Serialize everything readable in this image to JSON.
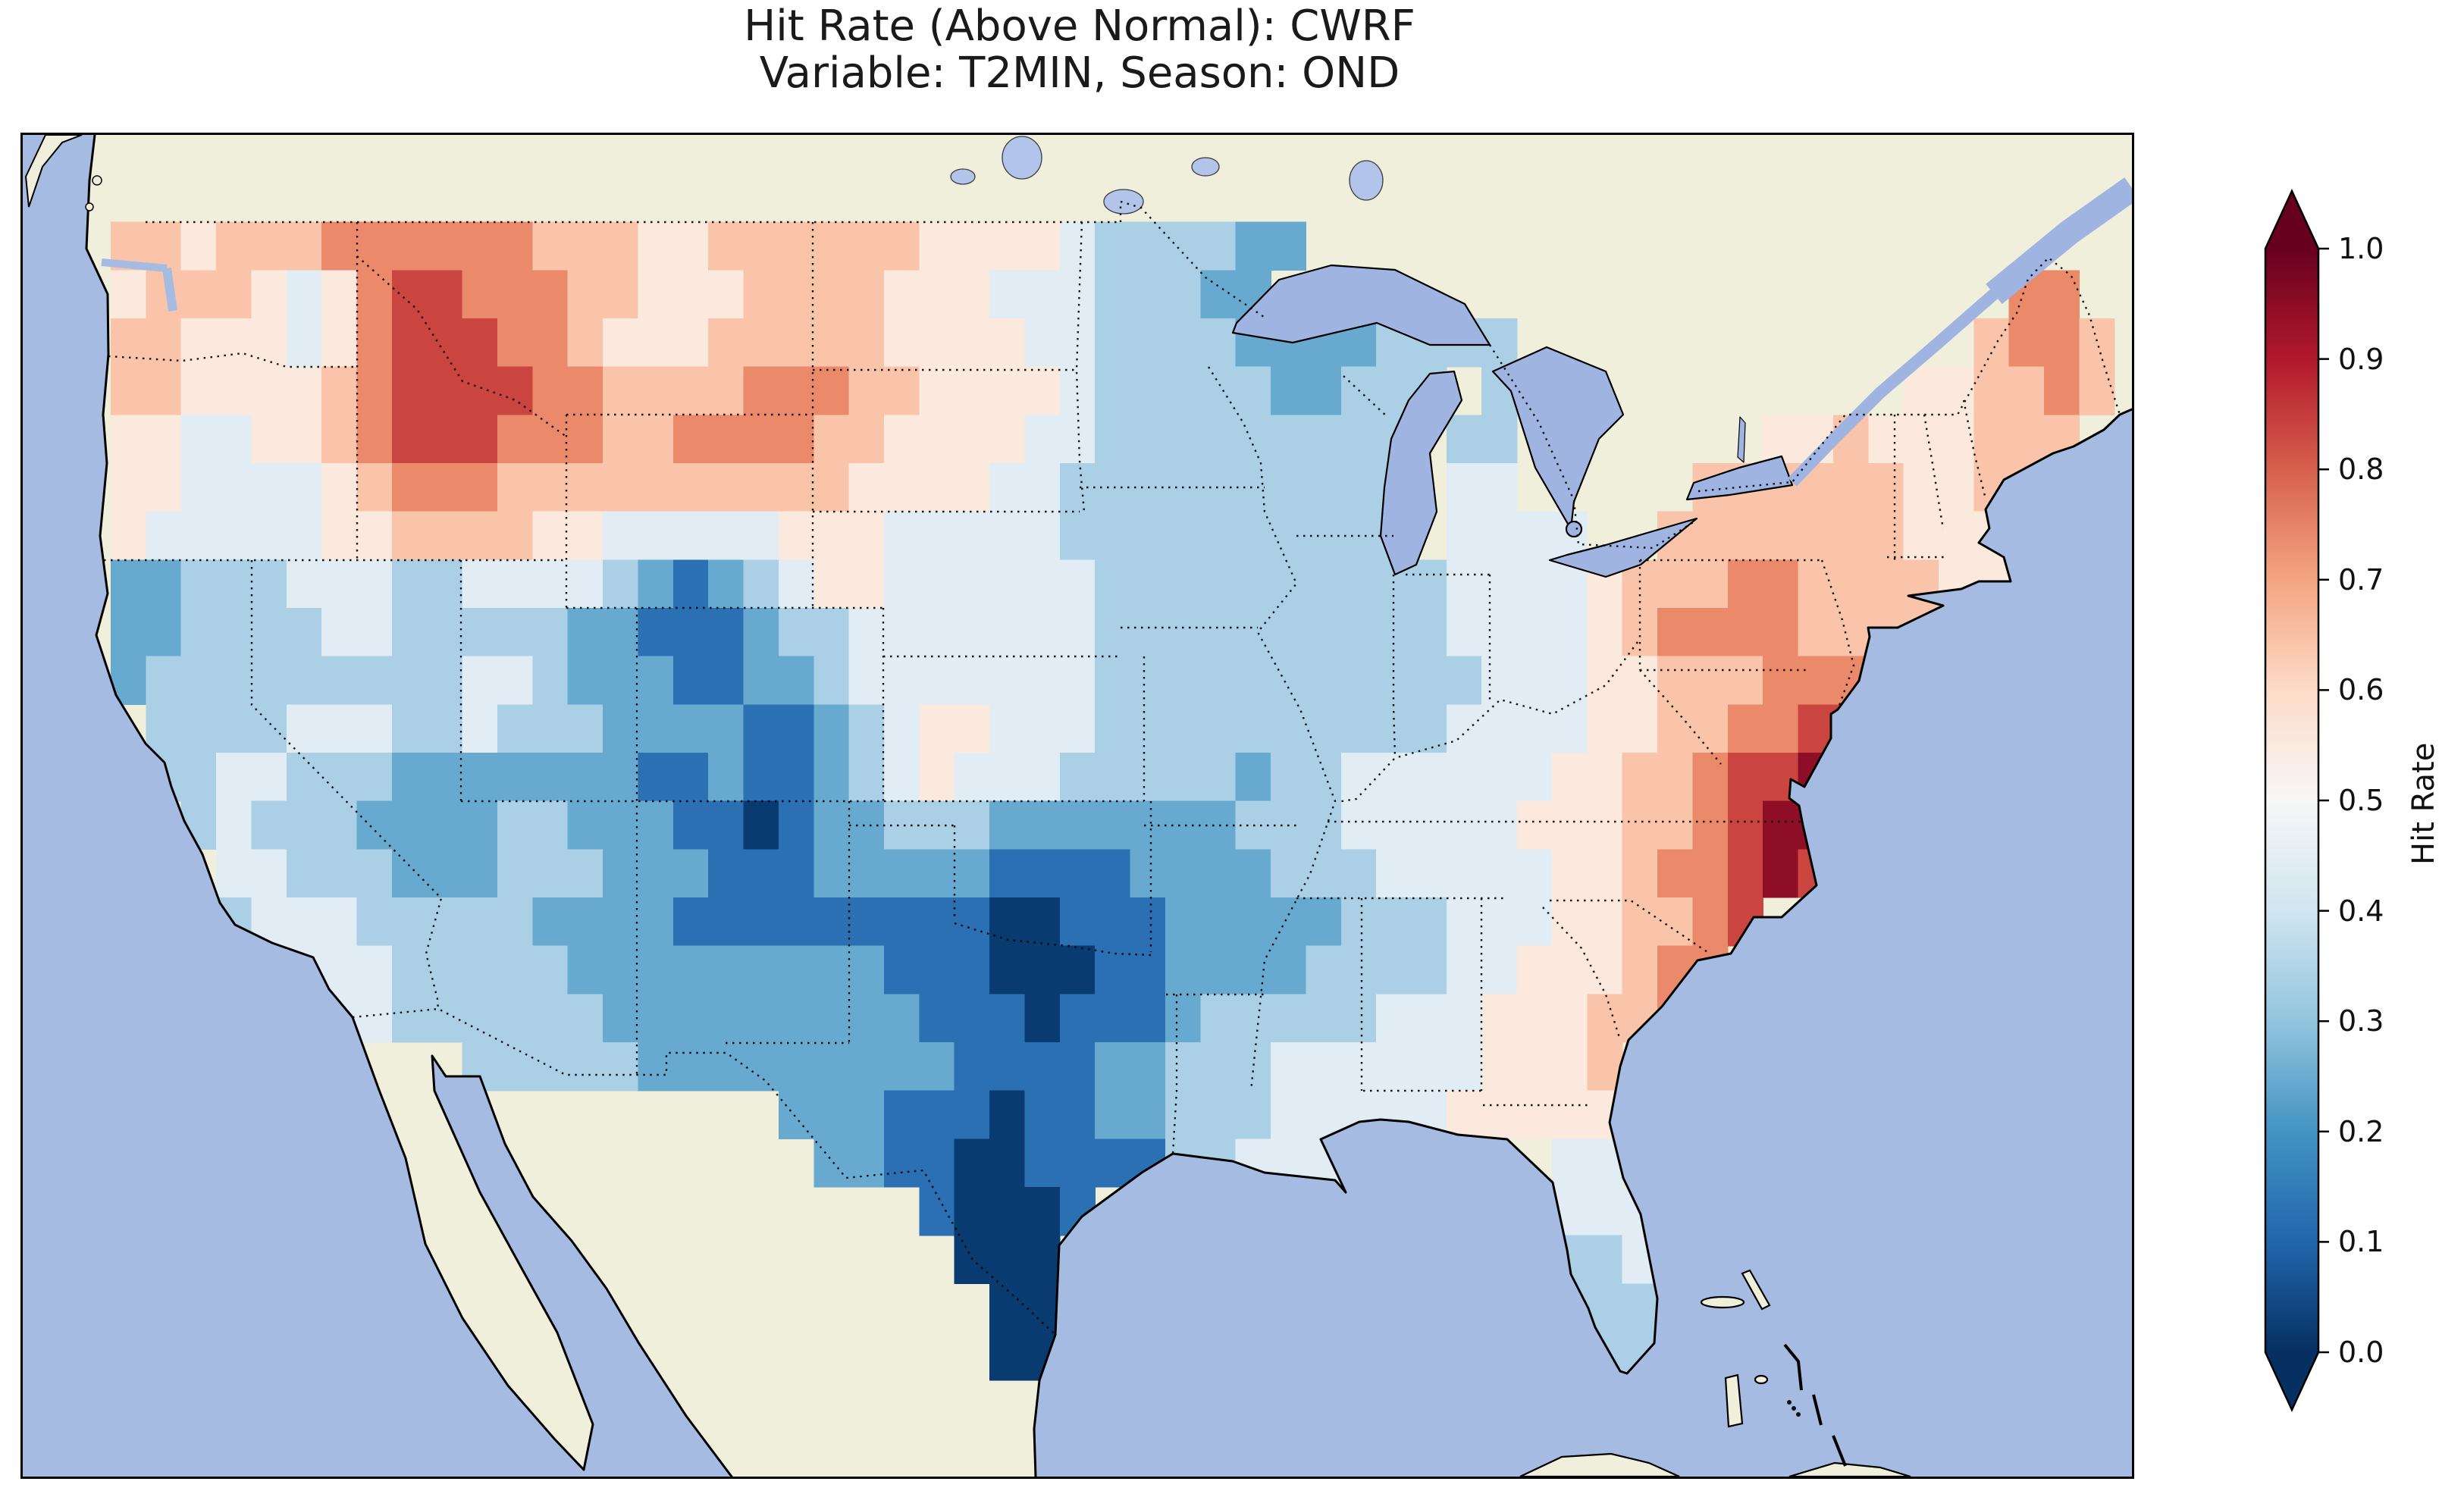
{
  "title": {
    "line1": "Hit Rate (Above Normal): CWRF",
    "line2": "Variable: T2MIN, Season: OND"
  },
  "colorbar": {
    "label": "Hit Rate",
    "ticks": [
      "0.0",
      "0.1",
      "0.2",
      "0.3",
      "0.4",
      "0.5",
      "0.6",
      "0.7",
      "0.8",
      "0.9",
      "1.0"
    ],
    "cmap_stops": [
      "#053061",
      "#2166ac",
      "#4393c3",
      "#92c5de",
      "#d1e5f0",
      "#f7f7f7",
      "#fddbc7",
      "#f4a582",
      "#d6604d",
      "#b2182b",
      "#67001f"
    ],
    "extend": "both"
  },
  "map_colors": {
    "ocean": "#a6bbe2",
    "land": "#f0efdc",
    "lakes": "#9fb4e0",
    "canada_lakes": "#b3c4ea",
    "coastline": "#000000"
  },
  "chart_data": {
    "type": "heatmap",
    "title": "Hit Rate (Above Normal): CWRF",
    "subtitle": "Variable: T2MIN, Season: OND",
    "metric": "Hit Rate (Above Normal)",
    "model": "CWRF",
    "variable": "T2MIN",
    "season": "OND",
    "value_label": "Hit Rate",
    "value_range": [
      0.0,
      1.0
    ],
    "levels": [
      0.0,
      0.1,
      0.2,
      0.3,
      0.4,
      0.5,
      0.6,
      0.7,
      0.8,
      0.9,
      1.0
    ],
    "bin_colors": [
      "#0a3b70",
      "#2a70b2",
      "#67a9cf",
      "#abd0e5",
      "#e1ecf4",
      "#fbe9dd",
      "#f9c4a9",
      "#ea8a6b",
      "#ca4540",
      "#8f0e27"
    ],
    "projection": {
      "lon_range": [
        -126.5,
        -66.5
      ],
      "lat_range": [
        23.0,
        50.8
      ]
    },
    "grid": {
      "lon_min": -125,
      "dlon": 1,
      "lat_max": 49,
      "dlat": 1,
      "cell_encoding": "digit d => hit rate bin [d/10,(d+1)/10); '.' => outside data domain",
      "rows": [
        ".6656667777776665566666655554333322........................",
        ".566654578877766555666655544433322.....................77..",
        ".6655545788877655566666555544333322223333.............6776.",
        ".66555567888877666677766555543333322333.3...........556676.",
        ".5544556788877766777766555544333333333.33.......556555666..",
        ".5544445677766666666665555443333333333.44.....6666665566...",
        ".5444445566665544444555444443333333333.4444..6666666555....",
        ".223334443344443212345544444433333333334444566677666655....",
        ".22333344333332211123344444443333333333444456777766665.....",
        ".233333333344322211223444444433333333333444556667776.......",
        "..3333444334333222211234554443333333333444455667788........",
        "..3344333222222211211234544433333233444444556678898........",
        "...34333222233222110122333222222233344444555667899.........",
        "....4433322233322211122222111122223334444455677898.........",
        "....34443333322221111111110011122222333444556678...........",
        "......44433333222222222111000112222333344555677............",
        ".......443333332222222221110111233333444555667.............",
        "...........333332222222221111223334444445556...............",
        "....................222111011223334444455555...............",
        ".....................221100111133444......44...............",
        "........................10001.............444..............",
        ".........................000..............334..............",
        "..........................00..............333..............",
        "..........................00...............33..............",
        "..........................................................."
      ]
    }
  }
}
